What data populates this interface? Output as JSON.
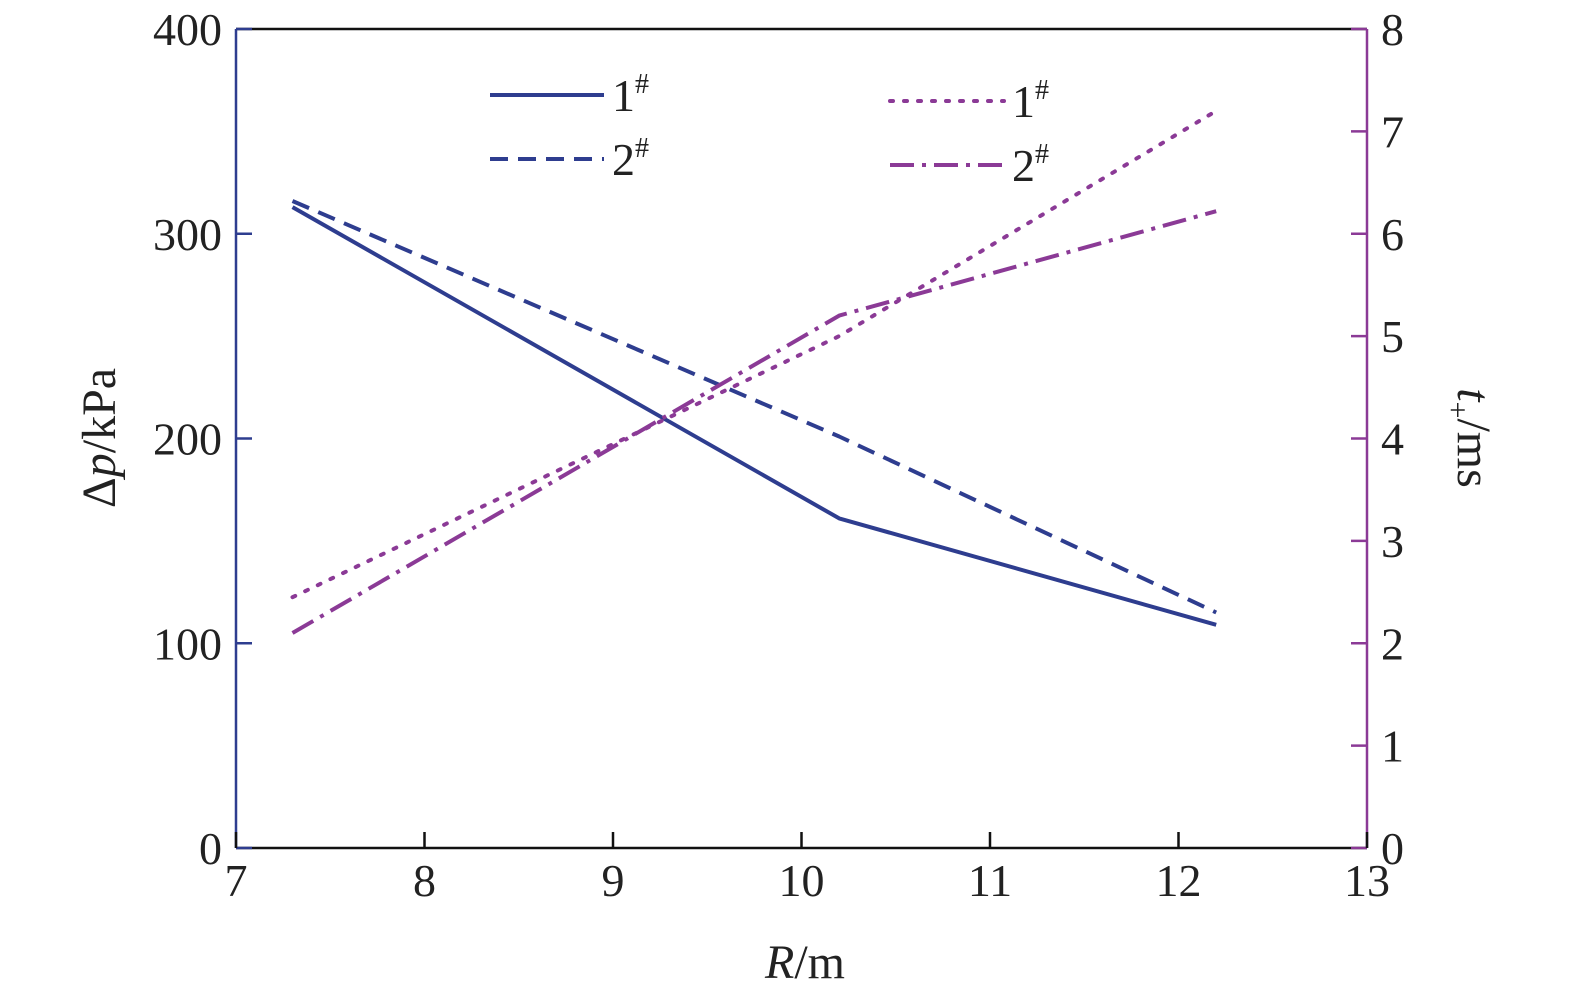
{
  "chart_data": {
    "type": "line",
    "x_axis": {
      "label_italic": "R",
      "label_unit": "/m",
      "range": [
        7,
        13
      ],
      "ticks": [
        7,
        8,
        9,
        10,
        11,
        12,
        13
      ]
    },
    "y_axis_left": {
      "label_prefix": "Δ",
      "label_italic": "p",
      "label_unit": "/kPa",
      "range": [
        0,
        400
      ],
      "ticks": [
        0,
        100,
        200,
        300,
        400
      ],
      "color": "#2e3d8f"
    },
    "y_axis_right": {
      "label_italic": "t",
      "label_sub": "+",
      "label_unit": "/ms",
      "range": [
        0,
        8
      ],
      "ticks": [
        0,
        1,
        2,
        3,
        4,
        5,
        6,
        7,
        8
      ],
      "color": "#8b3a96"
    },
    "grid": false,
    "legend_left": {
      "placement": "top-left"
    },
    "legend_right": {
      "placement": "top-right"
    },
    "series": [
      {
        "name": "1#",
        "name_base": "1",
        "name_sup": "#",
        "axis": "left",
        "style": "solid",
        "color": "#2e3d8f",
        "x": [
          7.3,
          10.2,
          12.2
        ],
        "y": [
          313,
          161,
          109
        ]
      },
      {
        "name": "2#",
        "name_base": "2",
        "name_sup": "#",
        "axis": "left",
        "style": "dashed",
        "color": "#2e3d8f",
        "x": [
          7.3,
          10.2,
          12.2
        ],
        "y": [
          316,
          201,
          115
        ]
      },
      {
        "name": "1#",
        "name_base": "1",
        "name_sup": "#",
        "axis": "right",
        "style": "dotted",
        "color": "#8b3a96",
        "x": [
          7.3,
          10.2,
          12.2
        ],
        "y": [
          2.45,
          5.0,
          7.2
        ]
      },
      {
        "name": "2#",
        "name_base": "2",
        "name_sup": "#",
        "axis": "right",
        "style": "dashdot",
        "color": "#8b3a96",
        "x": [
          7.3,
          10.2,
          12.2
        ],
        "y": [
          2.1,
          5.2,
          6.22
        ]
      }
    ]
  }
}
